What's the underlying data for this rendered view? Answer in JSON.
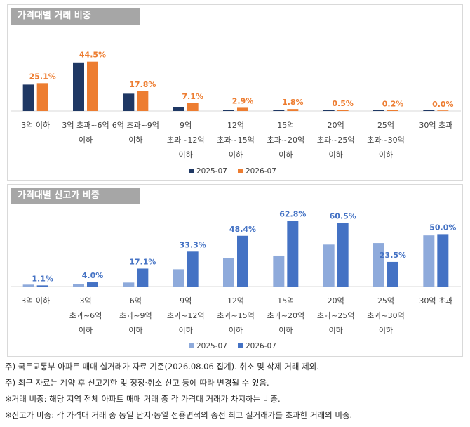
{
  "chart_data": [
    {
      "type": "bar",
      "title": "가격대별 거래 비중",
      "categories": [
        [
          "3억 이하"
        ],
        [
          "3억 초과~6억",
          "이하"
        ],
        [
          "6억 초과~9억",
          "이하"
        ],
        [
          "9억",
          "초과~12억",
          "이하"
        ],
        [
          "12억",
          "초과~15억",
          "이하"
        ],
        [
          "15억",
          "초과~20억",
          "이하"
        ],
        [
          "20억",
          "초과~25억",
          "이하"
        ],
        [
          "25억",
          "초과~30억",
          "이하"
        ],
        [
          "30억 초과"
        ]
      ],
      "series": [
        {
          "name": "2025-07",
          "color": "#1f3864",
          "values": [
            23.8,
            43.8,
            15.6,
            3.4,
            1.0,
            0.6,
            0.4,
            0.3,
            0.2
          ]
        },
        {
          "name": "2026-07",
          "color": "#ed7d31",
          "values": [
            25.1,
            44.5,
            17.8,
            7.1,
            2.9,
            1.8,
            0.5,
            0.2,
            0.0
          ]
        }
      ],
      "data_labels": [
        "25.1%",
        "44.5%",
        "17.8%",
        "7.1%",
        "2.9%",
        "1.8%",
        "0.5%",
        "0.2%",
        "0.0%"
      ],
      "label_series": 1,
      "label_color": "#ed7d31",
      "ylim": [
        0,
        50
      ],
      "grid": false,
      "legend": "bottom"
    },
    {
      "type": "bar",
      "title": "가격대별 신고가 비중",
      "categories": [
        [
          "3억 이하"
        ],
        [
          "3억",
          "초과~6억",
          "이하"
        ],
        [
          "6억",
          "초과~9억",
          "이하"
        ],
        [
          "9억",
          "초과~12억",
          "이하"
        ],
        [
          "12억",
          "초과~15억",
          "이하"
        ],
        [
          "15억",
          "초과~20억",
          "이하"
        ],
        [
          "20억",
          "초과~25억",
          "이하"
        ],
        [
          "25억",
          "초과~30억",
          "이하"
        ],
        [
          "30억 초과"
        ]
      ],
      "series": [
        {
          "name": "2025-07",
          "color": "#8eaadb",
          "values": [
            1.8,
            2.5,
            3.8,
            16.5,
            27.0,
            29.5,
            40.0,
            41.5,
            48.8
          ]
        },
        {
          "name": "2026-07",
          "color": "#4472c4",
          "values": [
            1.1,
            4.0,
            17.1,
            33.3,
            48.4,
            62.8,
            60.5,
            23.5,
            50.0
          ]
        }
      ],
      "data_labels": [
        "1.1%",
        "4.0%",
        "17.1%",
        "33.3%",
        "48.4%",
        "62.8%",
        "60.5%",
        "23.5%",
        "50.0%"
      ],
      "label_series": 1,
      "label_color": "#4472c4",
      "ylim": [
        0,
        65
      ],
      "grid": false,
      "legend": "bottom"
    }
  ],
  "notes": [
    "주) 국토교통부 아파트 매매 실거래가 자료 기준(2026.08.06 집계). 취소 및 삭제 거래 제외.",
    "주) 최근 자료는 계약 후 신고기한 및 정정·취소 신고 등에 따라 변경될 수 있음.",
    "※거래 비중: 해당 지역 전체 아파트 매매 거래 중 각 가격대 거래가 차지하는 비중.",
    "※신고가 비중: 각 가격대 거래 중 동일 단지·동일 전용면적의 종전 최고 실거래가를 초과한 거래의 비중."
  ]
}
